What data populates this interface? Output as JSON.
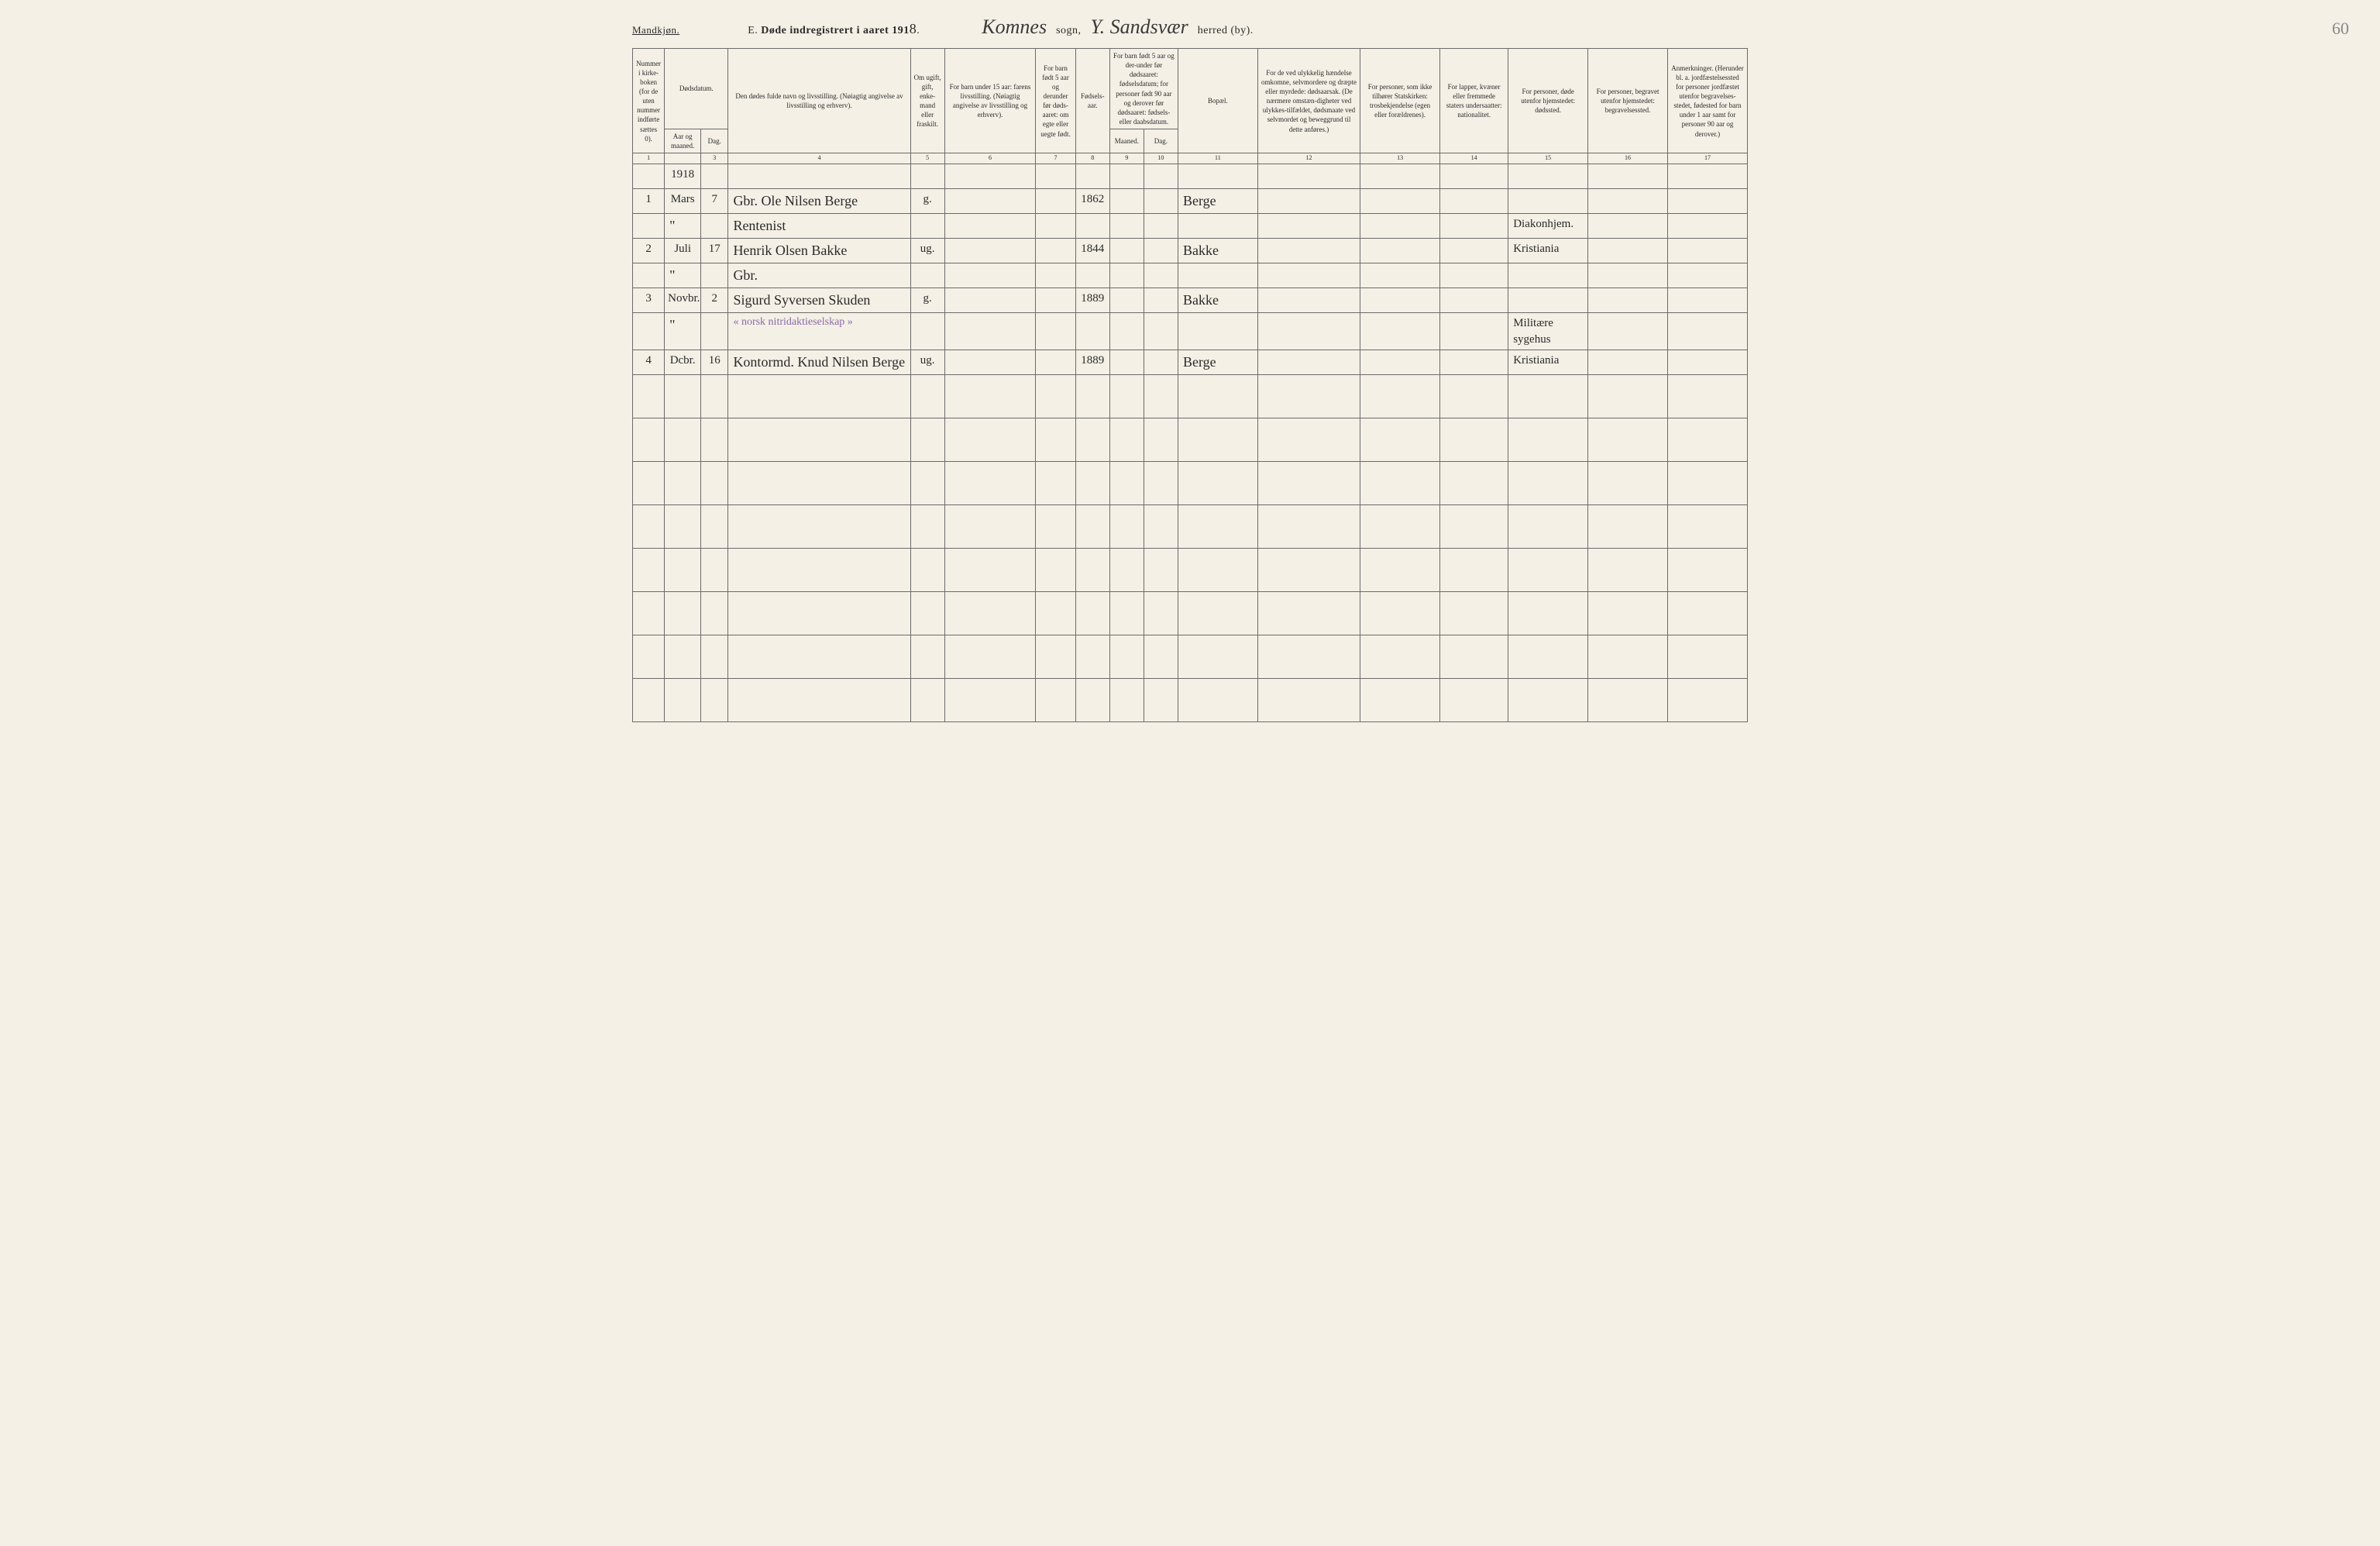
{
  "header": {
    "gender": "Mandkjøn.",
    "title_prefix": "E.",
    "title_main": "Døde indregistrert i aaret 191",
    "year_suffix": "8",
    "period": ".",
    "sogn_value": "Komnes",
    "sogn_label": "sogn,",
    "herred_value": "Y. Sandsvær",
    "herred_label": "herred (by).",
    "page_number": "60"
  },
  "columns": {
    "c1": "Nummer i kirke-boken (for de uten nummer indførte sættes 0).",
    "c2a": "Dødsdatum.",
    "c2_aar": "Aar og maaned.",
    "c2_dag": "Dag.",
    "c4": "Den dødes fulde navn og livsstilling. (Nøiagtig angivelse av livsstilling og erhverv).",
    "c5": "Om ugift, gift, enke-mand eller fraskilt.",
    "c6": "For barn under 15 aar: farens livsstilling. (Nøiagtig angivelse av livsstilling og erhverv).",
    "c7": "For barn født 5 aar og derunder før døds-aaret: om egte eller uegte født.",
    "c8": "Fødsels-aar.",
    "c9_10_top": "For barn født 5 aar og der-under før dødsaaret: fødselsdatum; for personer født 90 aar og derover før dødsaaret: fødsels- eller daabsdatum.",
    "c9": "Maaned.",
    "c10": "Dag.",
    "c11": "Bopæl.",
    "c12": "For de ved ulykkelig hændelse omkomne, selvmordere og dræpte eller myrdede: dødsaarsak. (De nærmere omstæn-digheter ved ulykkes-tilfældet, dødsmaate ved selvmordet og beweggrund til dette anføres.)",
    "c13": "For personer, som ikke tilhører Statskirken: trosbekjendelse (egen eller forældrenes).",
    "c14": "For lapper, kvæner eller fremmede staters undersaatter: nationalitet.",
    "c15": "For personer, døde utenfor hjemstedet: dødssted.",
    "c16": "For personer, begravet utenfor hjemstedet: begravelsessted.",
    "c17": "Anmerkninger. (Herunder bl. a. jordfæstelsessted for personer jordfæstet utenfor begravelses-stedet, fødested for barn under 1 aar samt for personer 90 aar og derover.)"
  },
  "colnums": [
    "1",
    "",
    "3",
    "4",
    "5",
    "6",
    "7",
    "8",
    "9",
    "10",
    "11",
    "12",
    "13",
    "14",
    "15",
    "16",
    "17"
  ],
  "year_row": "1918",
  "rows": [
    {
      "num": "1",
      "month": "Mars",
      "day": "7",
      "name": "Gbr. Ole Nilsen Berge",
      "status": "g.",
      "birth": "1862",
      "bopael": "Berge",
      "dodssted": ""
    },
    {
      "num": "",
      "month": "\"",
      "day": "",
      "name": "Rentenist",
      "status": "",
      "birth": "",
      "bopael": "",
      "dodssted": "Diakonhjem."
    },
    {
      "num": "2",
      "month": "Juli",
      "day": "17",
      "name": "Henrik Olsen Bakke",
      "status": "ug.",
      "birth": "1844",
      "bopael": "Bakke",
      "dodssted": "Kristiania"
    },
    {
      "num": "",
      "month": "\"",
      "day": "",
      "name": "Gbr.",
      "status": "",
      "birth": "",
      "bopael": "",
      "dodssted": ""
    },
    {
      "num": "3",
      "month": "Novbr.",
      "day": "2",
      "name": "Sigurd Syversen Skuden",
      "status": "g.",
      "birth": "1889",
      "bopael": "Bakke",
      "dodssted": ""
    },
    {
      "num": "",
      "month": "\"",
      "day": "",
      "name": "« norsk nitridaktieselskap »",
      "name_purple": true,
      "status": "",
      "birth": "",
      "bopael": "",
      "dodssted": "Militære sygehus"
    },
    {
      "num": "4",
      "month": "Dcbr.",
      "day": "16",
      "name": "Kontormd. Knud Nilsen Berge",
      "status": "ug.",
      "birth": "1889",
      "bopael": "Berge",
      "dodssted": "Kristiania"
    }
  ],
  "style": {
    "background": "#f4f0e6",
    "border_color": "#6b6b6b",
    "ink_color": "#2a2a2a",
    "purple_ink": "#8a6aa8",
    "header_fontsize": 9,
    "body_fontsize": 10,
    "cursive_fontsize": 26,
    "handwritten_fontsize": 18
  }
}
